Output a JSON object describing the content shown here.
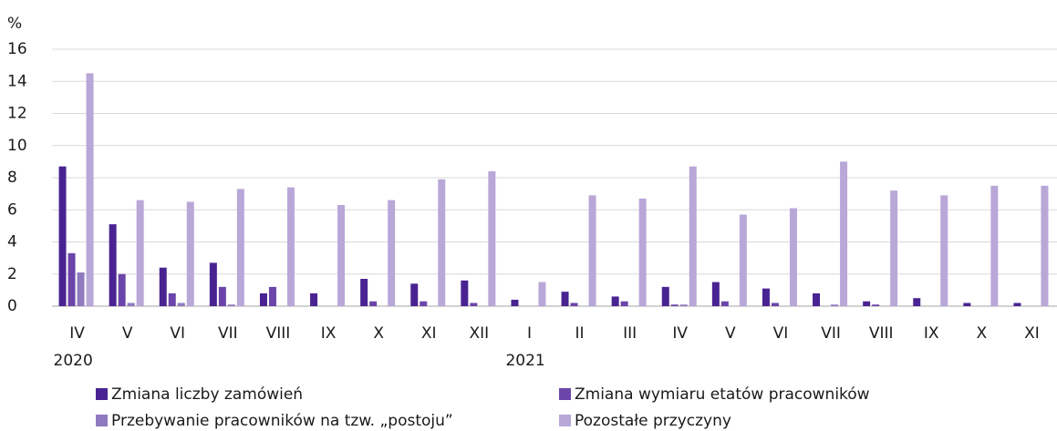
{
  "chart_data": {
    "type": "bar",
    "y_label": "%",
    "categories": [
      "IV",
      "V",
      "VI",
      "VII",
      "VIII",
      "IX",
      "X",
      "XI",
      "XII",
      "I",
      "II",
      "III",
      "IV",
      "V",
      "VI",
      "VII",
      "VIII",
      "IX",
      "X",
      "XI"
    ],
    "years": [
      "2020",
      null,
      null,
      null,
      null,
      null,
      null,
      null,
      null,
      "2021",
      null,
      null,
      null,
      null,
      null,
      null,
      null,
      null,
      null,
      null
    ],
    "series": [
      {
        "name": "Zmiana liczby zamówień",
        "color": "#4a2392",
        "values": [
          8.7,
          5.1,
          2.4,
          2.7,
          0.8,
          0.8,
          1.7,
          1.4,
          1.6,
          0.4,
          0.9,
          0.6,
          1.2,
          1.5,
          1.1,
          0.8,
          0.3,
          0.5,
          0.2,
          0.2
        ]
      },
      {
        "name": "Zmiana wymiaru etatów pracowników",
        "color": "#6c45aa",
        "values": [
          3.3,
          2.0,
          0.8,
          1.2,
          1.2,
          0,
          0.3,
          0.3,
          0.2,
          0,
          0.2,
          0.3,
          0.1,
          0.3,
          0.2,
          0,
          0.1,
          0,
          0,
          0
        ]
      },
      {
        "name": "Przebywanie pracowników na tzw. „postoju”",
        "color": "#907abf",
        "values": [
          2.1,
          0.2,
          0.2,
          0.1,
          0,
          0,
          0,
          0,
          0,
          0,
          0,
          0,
          0.1,
          0,
          0,
          0.1,
          0,
          0,
          0,
          0
        ]
      },
      {
        "name": "Pozostałe przyczyny",
        "color": "#b9a7d8",
        "values": [
          14.5,
          6.6,
          6.5,
          7.3,
          7.4,
          6.3,
          6.6,
          7.9,
          8.4,
          1.5,
          6.9,
          6.7,
          8.7,
          5.7,
          6.1,
          9.0,
          7.2,
          6.9,
          7.5,
          7.5
        ]
      }
    ],
    "ylim": [
      0,
      16
    ],
    "yticks": [
      0,
      2,
      4,
      6,
      8,
      10,
      12,
      14,
      16
    ],
    "grid": true
  }
}
